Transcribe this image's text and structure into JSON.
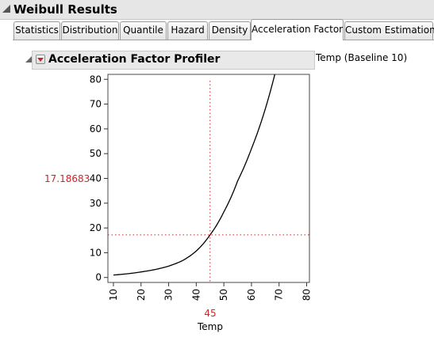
{
  "window": {
    "title": "Weibull Results"
  },
  "tabs": [
    {
      "label": "Statistics",
      "active": false
    },
    {
      "label": "Distribution",
      "active": false
    },
    {
      "label": "Quantile",
      "active": false
    },
    {
      "label": "Hazard",
      "active": false
    },
    {
      "label": "Density",
      "active": false
    },
    {
      "label": "Acceleration Factor",
      "active": true
    },
    {
      "label": "Custom Estimation",
      "active": false
    }
  ],
  "profiler": {
    "title": "Acceleration Factor Profiler",
    "baseline_label": "Temp (Baseline 10)",
    "current_y": "17.18683",
    "current_x": "45",
    "x_label": "Temp",
    "menu_icon": "red-triangle-menu-icon"
  },
  "colors": {
    "crosshair": "#c8262c",
    "curve": "#000000",
    "header_bg": "#e6e6e6"
  },
  "chart_data": {
    "type": "line",
    "x": [
      10,
      15,
      20,
      25,
      30,
      35,
      40,
      45,
      50,
      55,
      60,
      65,
      68
    ],
    "y": [
      1.0,
      1.5,
      2.25,
      3.2,
      4.6,
      6.8,
      10.7,
      17.2,
      26.5,
      39.0,
      52.0,
      68.0,
      80.0
    ],
    "xlabel": "Temp",
    "ylabel": "",
    "xlim": [
      8,
      81
    ],
    "ylim": [
      -2,
      82
    ],
    "xticks": [
      "10",
      "20",
      "30",
      "40",
      "50",
      "60",
      "70",
      "80"
    ],
    "yticks": [
      "0",
      "10",
      "20",
      "30",
      "40",
      "50",
      "60",
      "70",
      "80"
    ],
    "crosshair": {
      "x": 45,
      "y": 17.18683
    },
    "grid": false
  }
}
